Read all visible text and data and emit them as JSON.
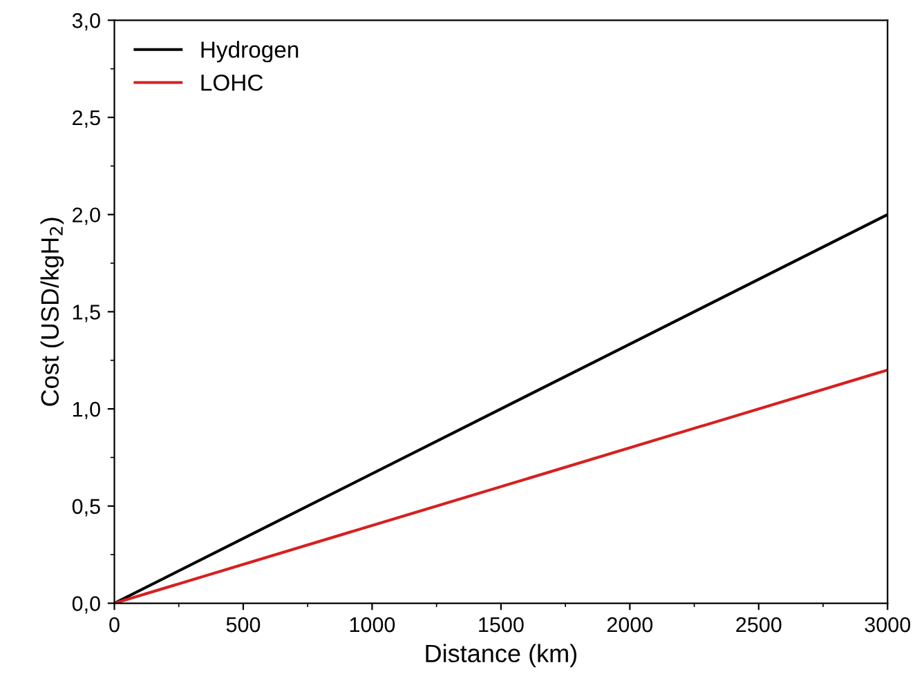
{
  "chart_data": {
    "type": "line",
    "xlabel": "Distance (km)",
    "ylabel": "Cost (USD/kgH$_{2}$)",
    "x": [
      0,
      3000
    ],
    "series": [
      {
        "name": "Hydrogen",
        "color": "#000000",
        "values": [
          0,
          2.0
        ]
      },
      {
        "name": "LOHC",
        "color": "#d62020",
        "values": [
          0,
          1.2
        ]
      }
    ],
    "xlim": [
      0,
      3000
    ],
    "ylim": [
      0,
      3.0
    ],
    "xticks": [
      0,
      500,
      1000,
      1500,
      2000,
      2500,
      3000
    ],
    "yticks": [
      {
        "value": 0,
        "label": "0,0"
      },
      {
        "value": 0.5,
        "label": "0,5"
      },
      {
        "value": 1.0,
        "label": "1,0"
      },
      {
        "value": 1.5,
        "label": "1,5"
      },
      {
        "value": 2.0,
        "label": "2,0"
      },
      {
        "value": 2.5,
        "label": "2,5"
      },
      {
        "value": 3.0,
        "label": "3,0"
      }
    ],
    "grid": false,
    "legend": "top left",
    "marker": "none",
    "line_style": "solid"
  }
}
